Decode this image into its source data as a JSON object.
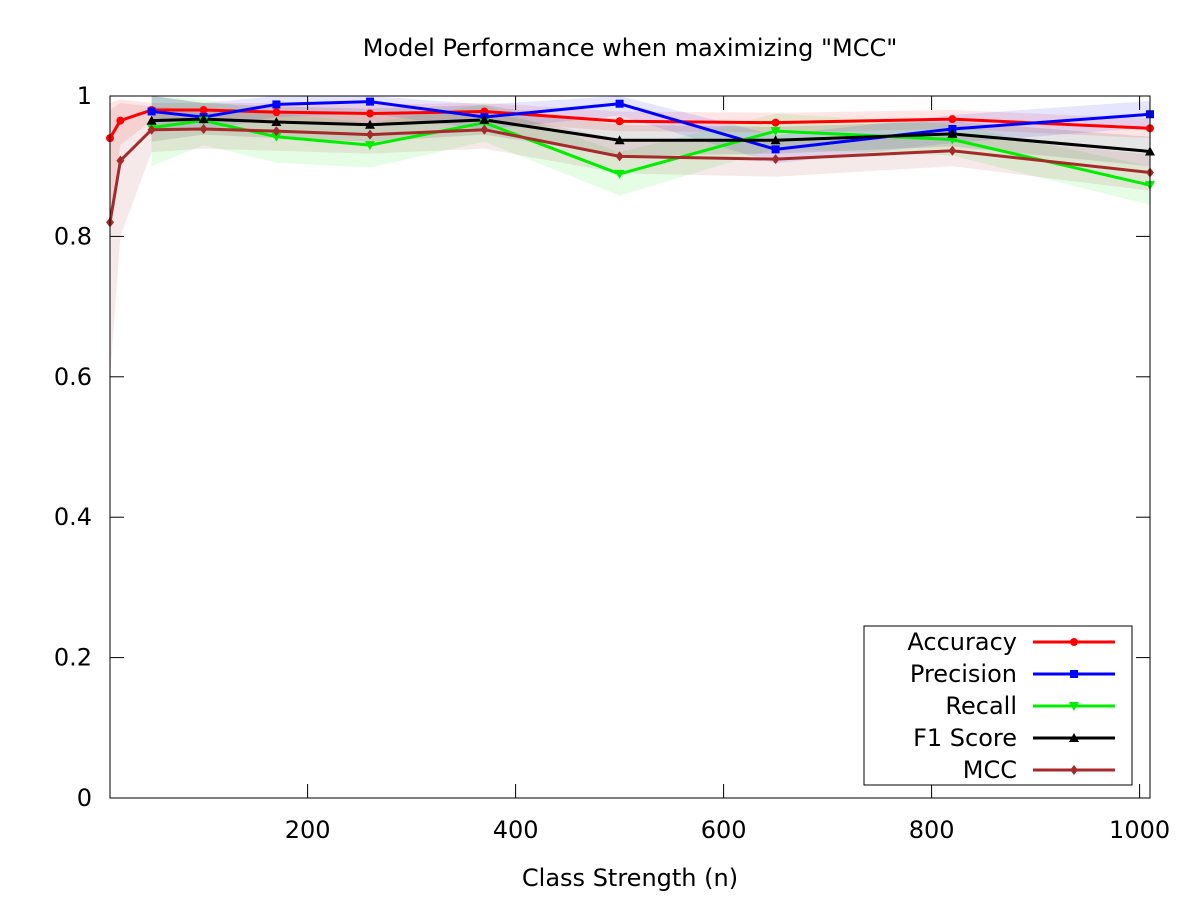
{
  "chart_data": {
    "type": "line",
    "title": "Model Performance when maximizing \"MCC\"",
    "xlabel": "Class Strength (n)",
    "ylabel": "",
    "xlim": [
      10,
      1010
    ],
    "ylim": [
      0,
      1
    ],
    "x_ticks": [
      200,
      400,
      600,
      800,
      1000
    ],
    "x_tick_labels": [
      "200",
      "400",
      "600",
      "800",
      "1000"
    ],
    "y_ticks": [
      0,
      0.2,
      0.4,
      0.6,
      0.8,
      1
    ],
    "y_tick_labels": [
      "0",
      "0.2",
      "0.4",
      "0.6",
      "0.8",
      "1"
    ],
    "grid": false,
    "legend_position": "bottom-right",
    "series": [
      {
        "name": "Accuracy",
        "color": "#ff0000",
        "marker": "circle",
        "x": [
          10,
          20,
          50,
          100,
          170,
          260,
          370,
          500,
          650,
          820,
          1010
        ],
        "y": [
          0.94,
          0.965,
          0.98,
          0.98,
          0.977,
          0.975,
          0.978,
          0.964,
          0.962,
          0.967,
          0.954
        ],
        "lower": [
          0.83,
          0.93,
          0.965,
          0.965,
          0.963,
          0.96,
          0.963,
          0.95,
          0.948,
          0.953,
          0.94
        ],
        "upper": [
          0.99,
          0.995,
          0.99,
          0.99,
          0.99,
          0.988,
          0.99,
          0.978,
          0.976,
          0.98,
          0.968
        ]
      },
      {
        "name": "Precision",
        "color": "#0000ff",
        "marker": "square",
        "x": [
          50,
          100,
          170,
          260,
          370,
          500,
          650,
          820,
          1010
        ],
        "y": [
          0.978,
          0.97,
          0.988,
          0.992,
          0.97,
          0.989,
          0.924,
          0.953,
          0.974
        ],
        "lower": [
          0.955,
          0.95,
          0.97,
          0.975,
          0.952,
          0.972,
          0.904,
          0.933,
          0.955
        ],
        "upper": [
          1.0,
          0.99,
          1.0,
          1.0,
          0.988,
          1.0,
          0.944,
          0.973,
          0.993
        ]
      },
      {
        "name": "Recall",
        "color": "#00ee00",
        "marker": "triangle-down",
        "x": [
          50,
          100,
          170,
          260,
          370,
          500,
          650,
          820,
          1010
        ],
        "y": [
          0.955,
          0.965,
          0.942,
          0.93,
          0.962,
          0.889,
          0.95,
          0.938,
          0.873
        ],
        "lower": [
          0.9,
          0.93,
          0.905,
          0.898,
          0.935,
          0.858,
          0.925,
          0.915,
          0.845
        ],
        "upper": [
          1.0,
          0.995,
          0.975,
          0.962,
          0.988,
          0.92,
          0.975,
          0.96,
          0.9
        ]
      },
      {
        "name": "F1 Score",
        "color": "#000000",
        "marker": "triangle-up",
        "x": [
          50,
          100,
          170,
          260,
          370,
          500,
          650,
          820,
          1010
        ],
        "y": [
          0.965,
          0.967,
          0.963,
          0.959,
          0.966,
          0.937,
          0.937,
          0.946,
          0.921
        ],
        "lower": [
          0.935,
          0.945,
          0.94,
          0.935,
          0.945,
          0.915,
          0.918,
          0.928,
          0.9
        ],
        "upper": [
          1.0,
          0.99,
          0.985,
          0.982,
          0.987,
          0.959,
          0.956,
          0.964,
          0.942
        ]
      },
      {
        "name": "MCC",
        "color": "#a52a2a",
        "marker": "diamond",
        "x": [
          10,
          20,
          50,
          100,
          170,
          260,
          370,
          500,
          650,
          820,
          1010
        ],
        "y": [
          0.82,
          0.908,
          0.952,
          0.953,
          0.95,
          0.945,
          0.952,
          0.914,
          0.91,
          0.922,
          0.891
        ],
        "lower": [
          0.6,
          0.8,
          0.92,
          0.925,
          0.922,
          0.918,
          0.925,
          0.89,
          0.885,
          0.9,
          0.865
        ],
        "upper": [
          0.98,
          0.99,
          0.985,
          0.98,
          0.978,
          0.972,
          0.978,
          0.938,
          0.935,
          0.944,
          0.917
        ]
      }
    ]
  }
}
